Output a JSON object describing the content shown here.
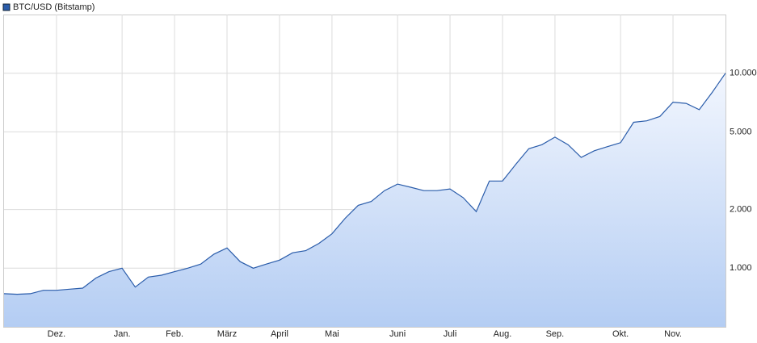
{
  "chart_data": {
    "type": "area",
    "categories": [
      null,
      null,
      null,
      null,
      "Dez.",
      null,
      null,
      null,
      null,
      "Jan.",
      null,
      null,
      null,
      "Feb.",
      null,
      null,
      null,
      "März",
      null,
      null,
      null,
      "April",
      null,
      null,
      null,
      "Mai",
      null,
      null,
      null,
      null,
      "Juni",
      null,
      null,
      null,
      "Juli",
      null,
      null,
      null,
      "Aug.",
      null,
      null,
      null,
      "Sep.",
      null,
      null,
      null,
      null,
      "Okt.",
      null,
      null,
      null,
      "Nov.",
      null,
      null,
      null,
      null
    ],
    "series": [
      {
        "name": "BTC/USD (Bitstamp)",
        "color": "#2a5caa",
        "values": [
          740,
          735,
          740,
          770,
          770,
          780,
          790,
          890,
          960,
          1000,
          800,
          900,
          920,
          960,
          1000,
          1050,
          1180,
          1270,
          1080,
          1000,
          1050,
          1100,
          1200,
          1230,
          1340,
          1500,
          1800,
          2100,
          2200,
          2500,
          2700,
          2600,
          2500,
          2500,
          2550,
          2300,
          1950,
          2800,
          2800,
          3400,
          4100,
          4300,
          4700,
          4300,
          3700,
          4000,
          4200,
          4400,
          5600,
          5700,
          6000,
          7100,
          7000,
          6500,
          8000,
          10000
        ]
      }
    ],
    "ylim": [
      500,
      20000
    ],
    "yticks": [
      {
        "value": 1000,
        "label": "1.000"
      },
      {
        "value": 2000,
        "label": "2.000"
      },
      {
        "value": 5000,
        "label": "5.000"
      },
      {
        "value": 10000,
        "label": "10.000"
      }
    ],
    "log_scale": true,
    "grid": true,
    "legend": "top-left"
  }
}
